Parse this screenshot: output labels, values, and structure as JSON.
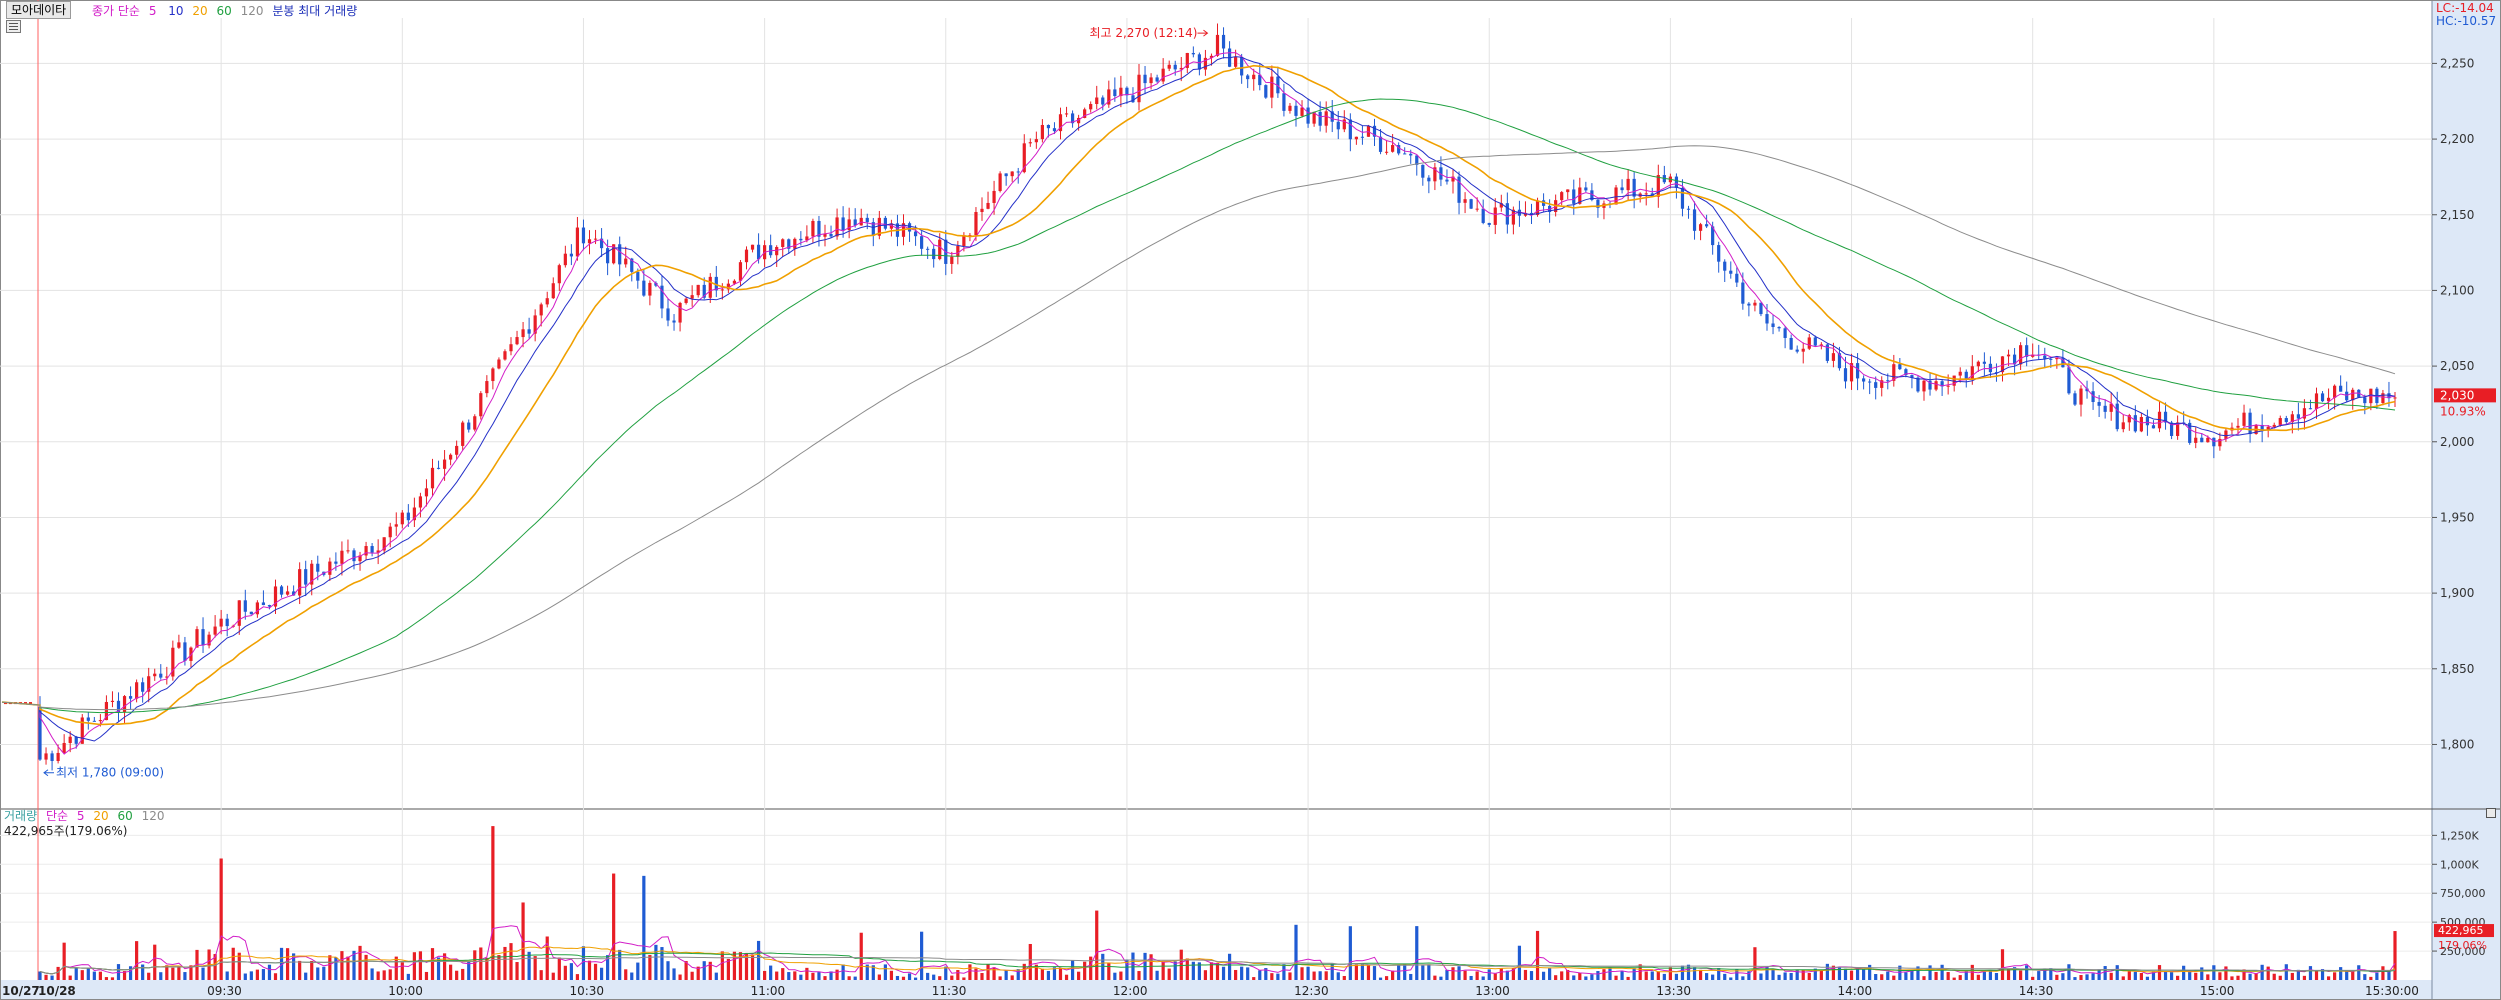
{
  "window": {
    "title_button": "모아데이타",
    "corner_lc": "LC:-14.04",
    "corner_hc": "HC:-10.57"
  },
  "legend_price": {
    "label": "종가 단순",
    "periods": [
      "5",
      "10",
      "20",
      "60",
      "120"
    ],
    "extra": "분봉 최대 거래량"
  },
  "legend_volume": {
    "label": "거래량",
    "sub": "단순",
    "periods": [
      "5",
      "20",
      "60",
      "120"
    ],
    "current": "422,965주(179.06%)"
  },
  "annotations": {
    "high": "최고 2,270 (12:14)",
    "low": "최저 1,780 (09:00)"
  },
  "colors": {
    "up": "#e81e25",
    "down": "#1f5bd3",
    "ma5": "#d21ec8",
    "ma10": "#2430c8",
    "ma20": "#f0a000",
    "ma60": "#20a040",
    "ma120": "#8c8c8c",
    "axis_bg": "#dde8f7"
  },
  "chart_data": [
    {
      "type": "candlestick",
      "title": "모아데이타",
      "series": [
        {
          "name": "종가 단순 5"
        },
        {
          "name": "10"
        },
        {
          "name": "20"
        },
        {
          "name": "60"
        },
        {
          "name": "120"
        }
      ],
      "ylim": [
        1760,
        2280
      ],
      "y_ticks": [
        "2,250",
        "2,200",
        "2,150",
        "2,100",
        "2,050",
        "2,000",
        "1,950",
        "1,900",
        "1,850",
        "1,800"
      ],
      "y_tick_values": [
        2250,
        2200,
        2150,
        2100,
        2050,
        2000,
        1950,
        1900,
        1850,
        1800
      ],
      "x_ticks": [
        "10/27",
        "10/28",
        "09:30",
        "10:00",
        "10:30",
        "11:00",
        "11:30",
        "12:00",
        "12:30",
        "13:00",
        "13:30",
        "14:00",
        "14:30",
        "15:00",
        "15:30:00"
      ],
      "grid": true,
      "last_price": "2,030",
      "last_change": "10.93%",
      "high": 2270,
      "low": 1780,
      "key_points": [
        {
          "t": "prev",
          "close": 1825
        },
        {
          "t": "09:00",
          "close": 1790
        },
        {
          "t": "09:30",
          "close": 1880
        },
        {
          "t": "10:00",
          "close": 1945
        },
        {
          "t": "10:15",
          "close": 2040
        },
        {
          "t": "10:30",
          "close": 2140
        },
        {
          "t": "10:45",
          "close": 2085
        },
        {
          "t": "11:00",
          "close": 2130
        },
        {
          "t": "11:15",
          "close": 2150
        },
        {
          "t": "11:30",
          "close": 2125
        },
        {
          "t": "11:45",
          "close": 2200
        },
        {
          "t": "12:00",
          "close": 2230
        },
        {
          "t": "12:15",
          "close": 2260
        },
        {
          "t": "12:30",
          "close": 2215
        },
        {
          "t": "12:45",
          "close": 2195
        },
        {
          "t": "13:00",
          "close": 2150
        },
        {
          "t": "13:15",
          "close": 2160
        },
        {
          "t": "13:30",
          "close": 2170
        },
        {
          "t": "13:45",
          "close": 2080
        },
        {
          "t": "14:00",
          "close": 2045
        },
        {
          "t": "14:15",
          "close": 2040
        },
        {
          "t": "14:30",
          "close": 2065
        },
        {
          "t": "14:40",
          "close": 2020
        },
        {
          "t": "15:00",
          "close": 2005
        },
        {
          "t": "15:20",
          "close": 2030
        }
      ]
    },
    {
      "type": "bar",
      "title": "거래량",
      "series": [
        {
          "name": "거래량"
        }
      ],
      "ylim": [
        0,
        1400000
      ],
      "y_ticks": [
        "1,250K",
        "1,000K",
        "750,000",
        "500,000",
        "250,000"
      ],
      "y_tick_values": [
        1250000,
        1000000,
        750000,
        500000,
        250000
      ],
      "last_volume": "422,965",
      "last_ratio": "179.06%",
      "spikes": [
        {
          "t": "09:30",
          "value": 1050000
        },
        {
          "t": "10:15",
          "value": 1330000
        },
        {
          "t": "10:20",
          "value": 670000
        },
        {
          "t": "10:35",
          "value": 920000
        },
        {
          "t": "10:40",
          "value": 900000
        },
        {
          "t": "11:55",
          "value": 600000
        },
        {
          "t": "15:30",
          "value": 422965
        }
      ]
    }
  ]
}
